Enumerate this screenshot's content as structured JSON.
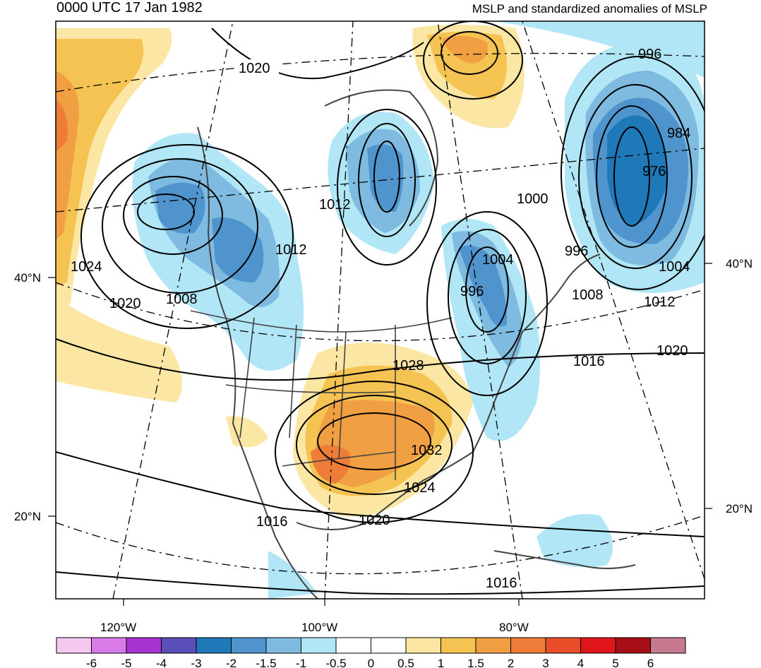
{
  "title_left": "0000 UTC 17 Jan 1982",
  "title_right": "MSLP and standardized anomalies of MSLP",
  "lat_labels": [
    "40°N",
    "20°N"
  ],
  "lon_labels": [
    "120°W",
    "100°W",
    "80°W"
  ],
  "contour_labels": [
    "1020",
    "996",
    "984",
    "976",
    "1012",
    "1000",
    "1012",
    "996",
    "1004",
    "1024",
    "1004",
    "996",
    "1020",
    "1008",
    "1008",
    "1012",
    "1028",
    "1020",
    "1016",
    "1032",
    "1024",
    "1016",
    "1020",
    "1016"
  ],
  "colorbar": {
    "colors": [
      "#f5c8f2",
      "#d87be9",
      "#a633cf",
      "#5a4fb8",
      "#1f78b8",
      "#4f94cc",
      "#7fbbe0",
      "#b0e6f5",
      "#ffffff",
      "#ffffff",
      "#fbe7a3",
      "#f5c351",
      "#f0a043",
      "#ee7d39",
      "#e84e2a",
      "#e0151b",
      "#a50f15",
      "#c7798f"
    ],
    "labels": [
      "-6",
      "-5",
      "-4",
      "-3",
      "-2",
      "-1.5",
      "-1",
      "-0.5",
      "0",
      "0.5",
      "1",
      "1.5",
      "2",
      "3",
      "4",
      "5",
      "6"
    ]
  },
  "colors": {
    "land_outline": "#444444",
    "contour": "#000000",
    "frame": "#000000"
  }
}
